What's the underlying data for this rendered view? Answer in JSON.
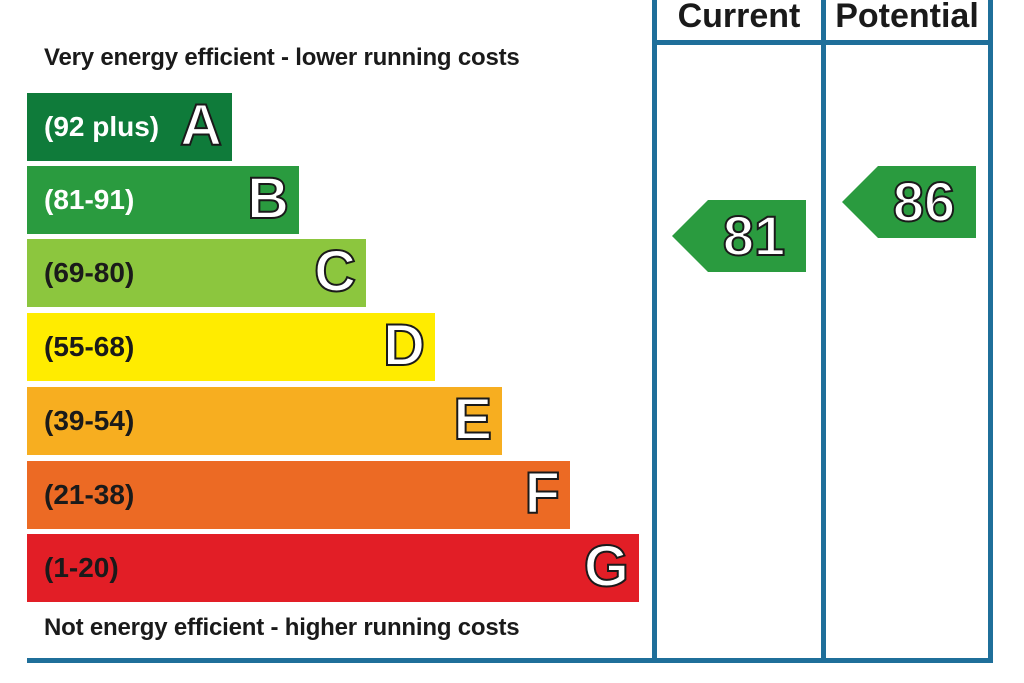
{
  "captions": {
    "top": "Very energy efficient - lower running costs",
    "bottom": "Not energy efficient - higher running costs"
  },
  "columns": {
    "current": "Current",
    "potential": "Potential"
  },
  "bands": [
    {
      "letter": "A",
      "range": "(92 plus)",
      "color": "#0f7b3a",
      "text_color": "#ffffff"
    },
    {
      "letter": "B",
      "range": "(81-91)",
      "color": "#2a9b3f",
      "text_color": "#ffffff"
    },
    {
      "letter": "C",
      "range": "(69-80)",
      "color": "#8cc63e",
      "text_color": "#1a1a1a"
    },
    {
      "letter": "D",
      "range": "(55-68)",
      "color": "#ffec00",
      "text_color": "#1a1a1a"
    },
    {
      "letter": "E",
      "range": "(39-54)",
      "color": "#f7ae20",
      "text_color": "#1a1a1a"
    },
    {
      "letter": "F",
      "range": "(21-38)",
      "color": "#ec6a24",
      "text_color": "#1a1a1a"
    },
    {
      "letter": "G",
      "range": "(1-20)",
      "color": "#e21e26",
      "text_color": "#1a1a1a"
    }
  ],
  "ratings": {
    "current": {
      "value": "81",
      "color": "#2a9b3f"
    },
    "potential": {
      "value": "86",
      "color": "#2a9b3f"
    }
  },
  "frame_color": "#1f6f9a"
}
